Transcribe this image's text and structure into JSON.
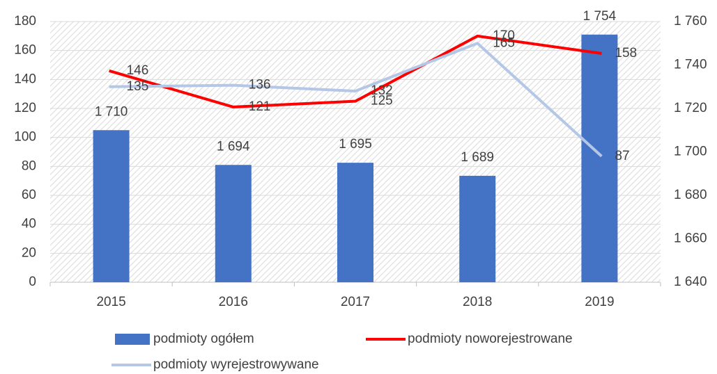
{
  "chart_data": {
    "type": "bar_line",
    "categories": [
      "2015",
      "2016",
      "2017",
      "2018",
      "2019"
    ],
    "series": [
      {
        "name": "podmioty ogółem",
        "type": "bar",
        "axis": "y2",
        "color": "#4472c4",
        "values": [
          1710,
          1694,
          1695,
          1689,
          1754
        ],
        "value_labels": [
          "1 710",
          "1 694",
          "1 695",
          "1 689",
          "1 754"
        ]
      },
      {
        "name": "podmioty noworejestrowane",
        "type": "line",
        "color": "#ff0000",
        "values": [
          146,
          121,
          125,
          170,
          158
        ]
      },
      {
        "name": "podmioty wyrejestrowywane",
        "type": "line",
        "color": "#b4c7e7",
        "values": [
          135,
          136,
          132,
          165,
          87
        ]
      }
    ],
    "ylim": [
      0,
      180
    ],
    "yticks": [
      0,
      20,
      40,
      60,
      80,
      100,
      120,
      140,
      160,
      180
    ],
    "y2lim": [
      1640,
      1760
    ],
    "y2ticks": [
      {
        "value": 1640,
        "label": "1 640"
      },
      {
        "value": 1660,
        "label": "1 660"
      },
      {
        "value": 1680,
        "label": "1 680"
      },
      {
        "value": 1700,
        "label": "1 700"
      },
      {
        "value": 1720,
        "label": "1 720"
      },
      {
        "value": 1740,
        "label": "1 740"
      },
      {
        "value": 1760,
        "label": "1 760"
      }
    ],
    "grid": true,
    "legend": "bottom"
  }
}
